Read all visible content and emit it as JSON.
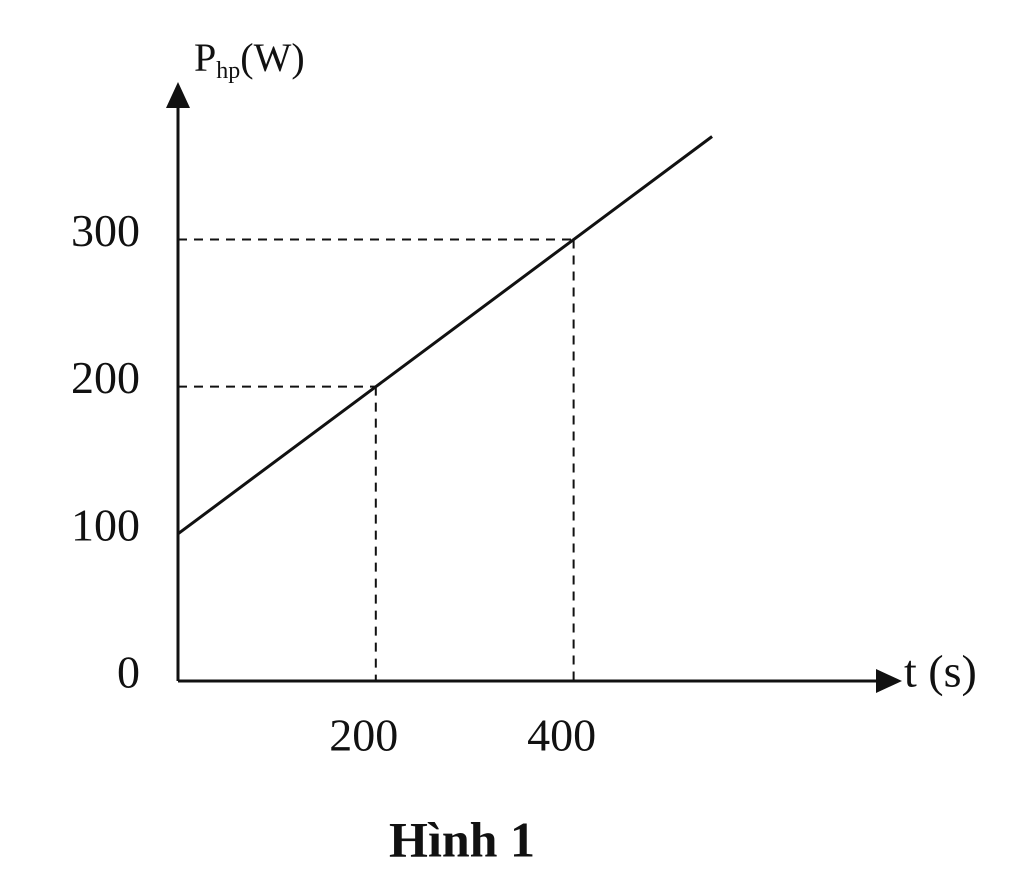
{
  "chart_data": {
    "type": "line",
    "caption": "Hình 1",
    "y_label": "P",
    "y_label_subscript": "hp",
    "y_label_unit": "(W)",
    "x_label": "t (s)",
    "x": [
      0,
      200,
      400,
      540
    ],
    "values": [
      100,
      200,
      300,
      370
    ],
    "color": "#111111",
    "xlim": [
      0,
      730
    ],
    "ylim": [
      0,
      405
    ],
    "xticks": [
      200,
      400
    ],
    "yticks": [
      0,
      100,
      200,
      300
    ],
    "guides": true,
    "grid": false
  }
}
